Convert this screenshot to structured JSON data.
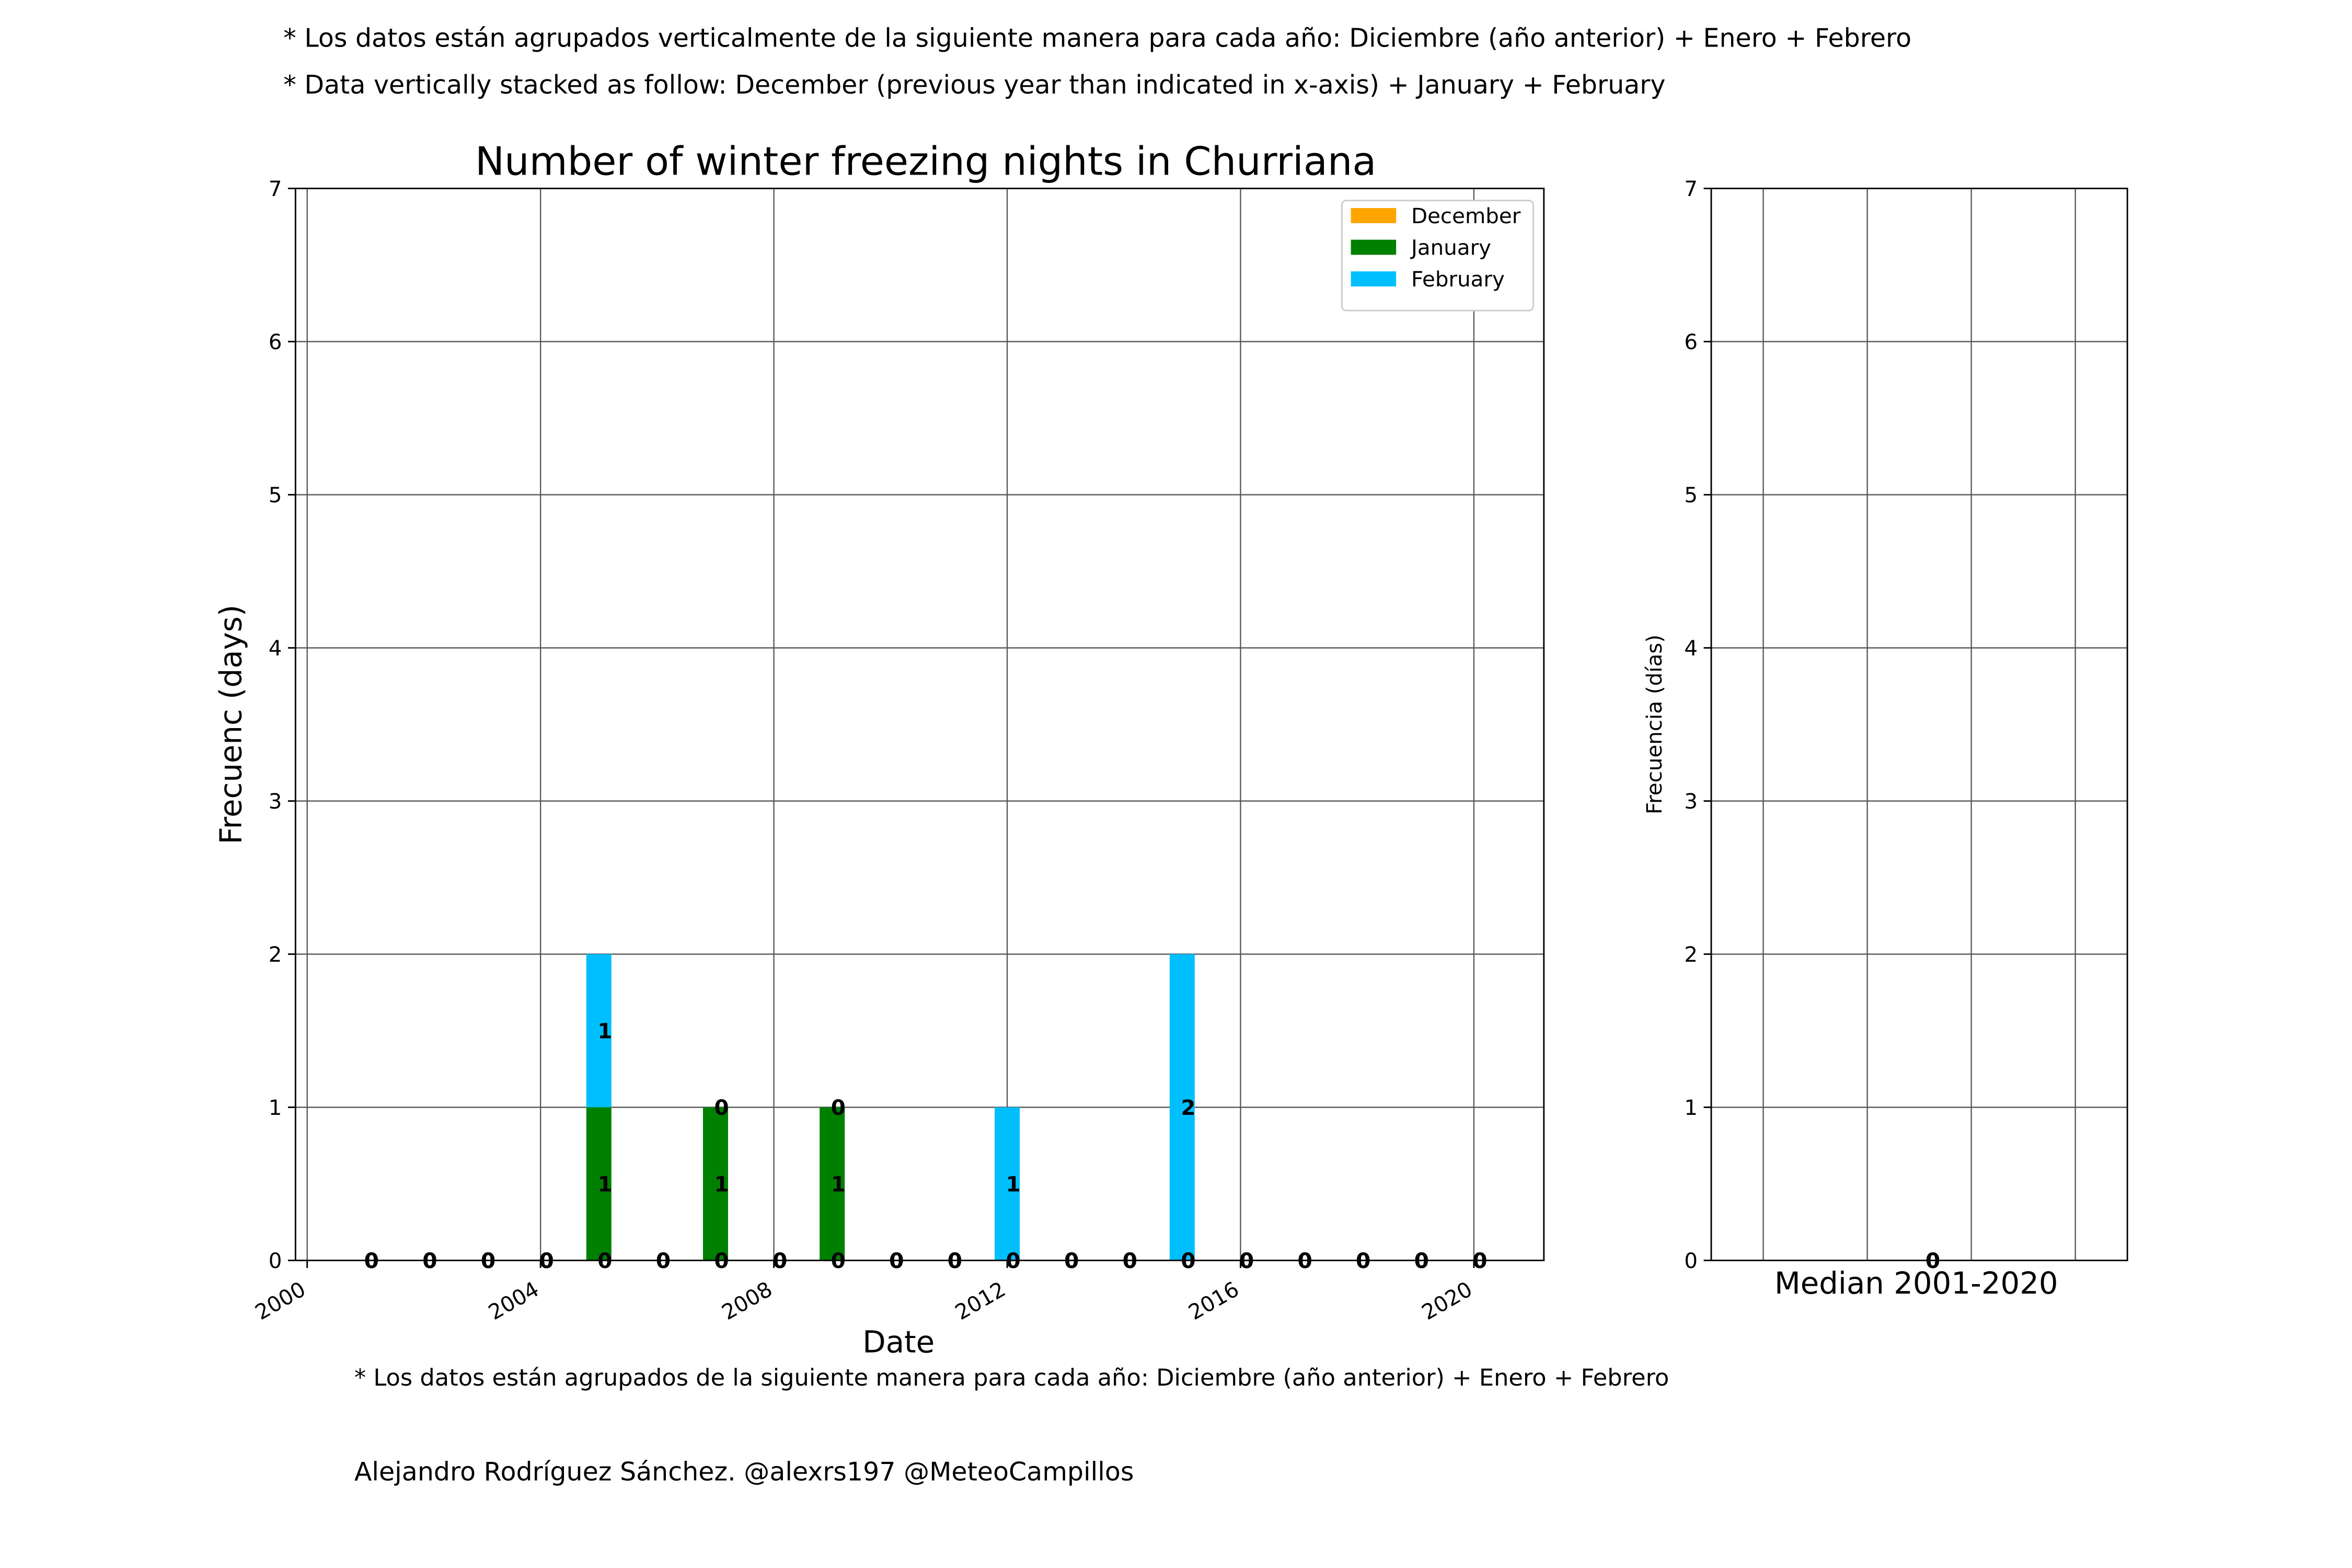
{
  "notes": [
    "* Los datos están agrupados verticalmente de la siguiente manera para cada año: Diciembre (año anterior) + Enero  + Febrero",
    "* Data vertically stacked as follow: December (previous year than indicated in x-axis) + January  + February"
  ],
  "chart_data": [
    {
      "type": "bar",
      "stacked": true,
      "title": "Number of winter freezing nights in Churriana",
      "xlabel": "Date",
      "ylabel": "Frecuenc (days)",
      "x": [
        2001,
        2002,
        2003,
        2004,
        2005,
        2006,
        2007,
        2008,
        2009,
        2010,
        2011,
        2012,
        2013,
        2014,
        2015,
        2016,
        2017,
        2018,
        2019,
        2020
      ],
      "series": [
        {
          "name": "December",
          "color": "#ffa500",
          "values": [
            0,
            0,
            0,
            0,
            0,
            0,
            0,
            0,
            0,
            0,
            0,
            0,
            0,
            0,
            0,
            0,
            0,
            0,
            0,
            0
          ]
        },
        {
          "name": "January",
          "color": "#008000",
          "values": [
            0,
            0,
            0,
            0,
            1,
            0,
            1,
            0,
            1,
            0,
            0,
            0,
            0,
            0,
            0,
            0,
            0,
            0,
            0,
            0
          ]
        },
        {
          "name": "February",
          "color": "#00bfff",
          "values": [
            0,
            0,
            0,
            0,
            1,
            0,
            0,
            0,
            0,
            0,
            0,
            1,
            0,
            0,
            2,
            0,
            0,
            0,
            0,
            0
          ]
        }
      ],
      "xlim": [
        1999.8,
        2021.2
      ],
      "xticks": [
        2000,
        2004,
        2008,
        2012,
        2016,
        2020
      ],
      "ylim": [
        0,
        7
      ],
      "yticks": [
        0,
        1,
        2,
        3,
        4,
        5,
        6,
        7
      ],
      "grid": true,
      "legend": "upper right"
    },
    {
      "type": "bar",
      "stacked": true,
      "xlabel": "Median 2001-2020",
      "ylabel": "Frecuencia (días)",
      "series": [
        {
          "color": "#ffa500",
          "values": [
            0
          ]
        },
        {
          "color": "#008000",
          "values": [
            0
          ]
        },
        {
          "color": "#00bfff",
          "values": [
            0
          ]
        }
      ],
      "ylim": [
        0,
        7
      ],
      "yticks": [
        0,
        1,
        2,
        3,
        4,
        5,
        6,
        7
      ],
      "grid": true
    }
  ],
  "footnote": "* Los datos están agrupados de la siguiente manera para cada año: Diciembre (año anterior) + Enero  + Febrero",
  "credit": "Alejandro Rodríguez Sánchez. @alexrs197 @MeteoCampillos"
}
